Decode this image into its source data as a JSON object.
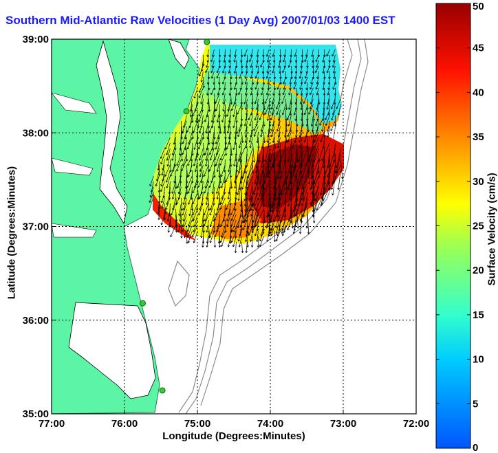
{
  "chart_data": {
    "type": "heatmap",
    "title": "Southern Mid-Atlantic Raw Velocities (1 Day Avg) 2007/01/03 1400 EST",
    "xlabel": "Longitude (Degrees:Minutes)",
    "ylabel": "Latitude (Degrees:Minutes)",
    "xlim": [
      -77,
      -72
    ],
    "ylim": [
      35,
      39
    ],
    "x_ticks": [
      {
        "value": -77,
        "label": "77:00"
      },
      {
        "value": -76,
        "label": "76:00"
      },
      {
        "value": -75,
        "label": "75:00"
      },
      {
        "value": -74,
        "label": "74:00"
      },
      {
        "value": -73,
        "label": "73:00"
      },
      {
        "value": -72,
        "label": "72:00"
      }
    ],
    "y_ticks": [
      {
        "value": 35,
        "label": "35:00"
      },
      {
        "value": 36,
        "label": "36:00"
      },
      {
        "value": 37,
        "label": "37:00"
      },
      {
        "value": 38,
        "label": "38:00"
      },
      {
        "value": 39,
        "label": "39:00"
      }
    ],
    "grid": true,
    "colorbar": {
      "label": "Surface Velocity (cm/s)",
      "range": [
        0,
        50
      ],
      "ticks": [
        {
          "value": 0,
          "label": "0"
        },
        {
          "value": 5,
          "label": "5"
        },
        {
          "value": 10,
          "label": "10"
        },
        {
          "value": 15,
          "label": "15"
        },
        {
          "value": 20,
          "label": "20"
        },
        {
          "value": 25,
          "label": "25"
        },
        {
          "value": 30,
          "label": "30"
        },
        {
          "value": 35,
          "label": "35"
        },
        {
          "value": 40,
          "label": "40"
        },
        {
          "value": 45,
          "label": "45"
        },
        {
          "value": 50,
          "label": "50"
        }
      ]
    },
    "colors": {
      "land": "#5cf5a6",
      "water": "#ffffff",
      "station": "#33cc33",
      "arrow": "#000000"
    },
    "stations": [
      {
        "lon": -74.87,
        "lat": 38.97
      },
      {
        "lon": -75.15,
        "lat": 38.23
      },
      {
        "lon": -75.75,
        "lat": 36.18
      },
      {
        "lon": -75.48,
        "lat": 35.25
      }
    ],
    "velocity_field": {
      "lon_range": [
        -75.6,
        -72.9
      ],
      "lat_range": [
        36.8,
        38.95
      ],
      "regions": [
        {
          "name": "north-cyan",
          "lon": [
            -74.9,
            -73.1
          ],
          "lat": [
            38.45,
            38.95
          ],
          "speed": 10
        },
        {
          "name": "central-yellow",
          "lon": [
            -75.4,
            -74.4
          ],
          "lat": [
            36.9,
            38.4
          ],
          "speed": 25
        },
        {
          "name": "southeast-red",
          "lon": [
            -74.4,
            -72.95
          ],
          "lat": [
            37.1,
            37.95
          ],
          "speed": 45
        }
      ],
      "mean_direction_deg": 190
    }
  }
}
